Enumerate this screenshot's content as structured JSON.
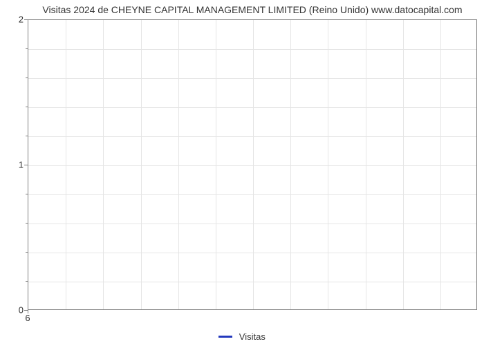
{
  "chart": {
    "type": "line",
    "title": "Visitas 2024 de CHEYNE CAPITAL MANAGEMENT LIMITED (Reino Unido) www.datocapital.com",
    "title_fontsize": 14,
    "title_color": "#333333",
    "background_color": "#ffffff",
    "plot_border_color": "#808080",
    "grid_color": "#e5e5e5",
    "y_axis": {
      "min": 0,
      "max": 2,
      "major_ticks": [
        0,
        1,
        2
      ],
      "minor_tick_count_between": 4,
      "label_fontsize": 13,
      "label_color": "#333333"
    },
    "x_axis": {
      "ticks": [
        "6"
      ],
      "grid_divisions": 12,
      "label_fontsize": 13,
      "label_color": "#333333"
    },
    "series": [
      {
        "name": "Visitas",
        "color": "#2439bd",
        "line_width": 3,
        "data_x": [],
        "data_y": []
      }
    ],
    "legend": {
      "position": "bottom-center",
      "fontsize": 13,
      "color": "#333333"
    }
  }
}
